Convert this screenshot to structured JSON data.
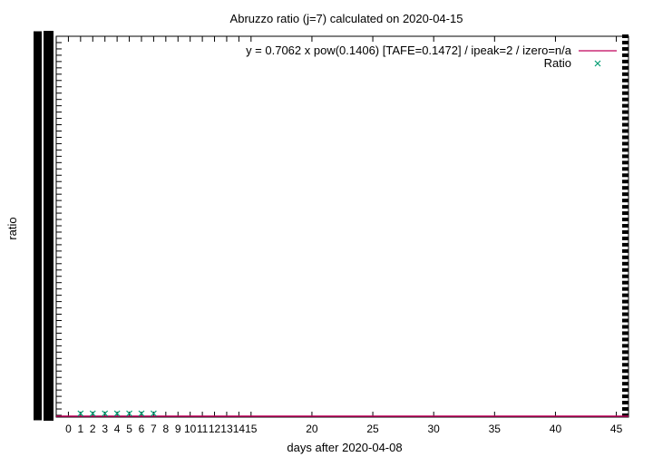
{
  "chart_data": {
    "type": "scatter",
    "title": "Abruzzo ratio (j=7) calculated on 2020-04-15",
    "xlabel": "days after 2020-04-08",
    "ylabel": "ratio",
    "xlim": [
      -1,
      46
    ],
    "ylim": [
      0,
      1
    ],
    "x_ticks": [
      0,
      1,
      2,
      3,
      4,
      5,
      6,
      7,
      8,
      9,
      10,
      11,
      12,
      13,
      14,
      15,
      20,
      25,
      30,
      35,
      40,
      45
    ],
    "grid": false,
    "legend_position": "top-right",
    "series": [
      {
        "name": "y = 0.7062 x pow(0.1406)  [TAFE=0.1472] / ipeak=2 / izero=n/a",
        "kind": "line",
        "color": "#c0005a",
        "x": [
          -1,
          46
        ],
        "y": [
          0,
          0
        ]
      },
      {
        "name": "Ratio",
        "kind": "points",
        "marker": "x",
        "color": "#009e73",
        "x": [
          1,
          2,
          3,
          4,
          5,
          6,
          7
        ],
        "y": [
          0,
          0,
          0,
          0,
          0,
          0,
          0
        ]
      }
    ]
  }
}
